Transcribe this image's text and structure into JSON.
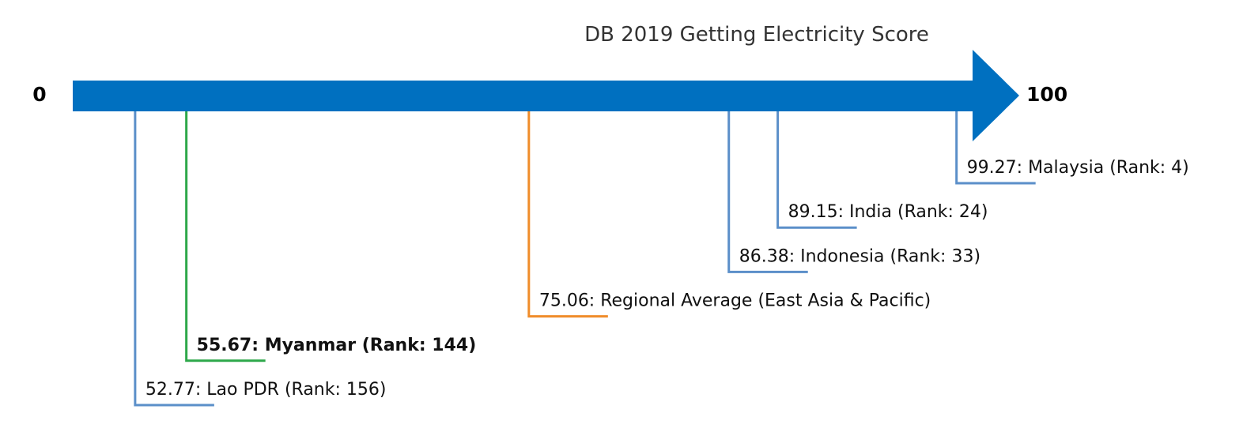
{
  "chart_data": {
    "type": "scatter",
    "title": "DB 2019 Getting Electricity Score",
    "xlim": [
      0,
      100
    ],
    "axis_min_label": "0",
    "axis_max_label": "100",
    "grid": false,
    "colors": {
      "arrow": "#0070c0",
      "country": "#5b8fc9",
      "highlight": "#2ea84a",
      "average": "#f08c2a",
      "text": "#111111"
    },
    "points": [
      {
        "value": 99.27,
        "label": "99.27: Malaysia (Rank: 4)",
        "kind": "country"
      },
      {
        "value": 89.15,
        "label": "89.15: India (Rank: 24)",
        "kind": "country"
      },
      {
        "value": 86.38,
        "label": "86.38: Indonesia (Rank: 33)",
        "kind": "country"
      },
      {
        "value": 75.06,
        "label": "75.06: Regional Average (East Asia & Pacific)",
        "kind": "average"
      },
      {
        "value": 55.67,
        "label": "55.67: Myanmar (Rank: 144)",
        "kind": "highlight"
      },
      {
        "value": 52.77,
        "label": "52.77: Lao PDR (Rank: 156)",
        "kind": "country"
      }
    ]
  }
}
